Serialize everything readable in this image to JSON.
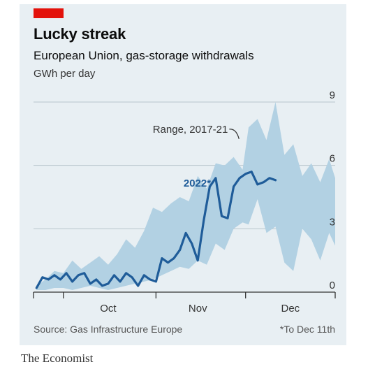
{
  "header": {
    "title": "Lucky streak",
    "subtitle": "European Union, gas-storage withdrawals",
    "unit": "GWh per day"
  },
  "footer": {
    "source": "Source: Gas Infrastructure Europe",
    "footnote": "*To Dec 11th",
    "brand": "The Economist"
  },
  "colors": {
    "accent_red": "#e3120b",
    "band": "#b2d1e3",
    "line": "#1f5c99",
    "card_bg": "#e8eff3"
  },
  "chart_data": {
    "type": "area",
    "title": "Lucky streak",
    "subtitle": "European Union, gas-storage withdrawals",
    "ylabel": "GWh per day",
    "ylim": [
      0,
      9
    ],
    "y_ticks": [
      0,
      3,
      6,
      9
    ],
    "y_tick_labels": [
      "0",
      "3",
      "6",
      "9"
    ],
    "x_axis": {
      "type": "date",
      "range": [
        "2000-09-21",
        "2000-12-31"
      ],
      "month_labels": [
        {
          "label": "Oct",
          "center": "2000-10-16"
        },
        {
          "label": "Nov",
          "center": "2000-11-15"
        },
        {
          "label": "Dec",
          "center": "2000-12-16"
        }
      ],
      "month_ticks": [
        "2000-10-01",
        "2000-11-01",
        "2000-12-01",
        "2000-12-31"
      ]
    },
    "grid": true,
    "legend": "none",
    "annotations": [
      {
        "text": "Range, 2017-21",
        "target": "range band"
      },
      {
        "text": "2022*",
        "target": "2022 line"
      }
    ],
    "series": [
      {
        "name": "Range, 2017-21",
        "kind": "band",
        "x": [
          "09-22",
          "09-25",
          "09-28",
          "10-01",
          "10-04",
          "10-07",
          "10-10",
          "10-13",
          "10-16",
          "10-19",
          "10-22",
          "10-25",
          "10-28",
          "10-31",
          "11-03",
          "11-06",
          "11-09",
          "11-12",
          "11-15",
          "11-18",
          "11-21",
          "11-24",
          "11-27",
          "11-30",
          "12-02",
          "12-05",
          "12-08",
          "12-11",
          "12-14",
          "12-17",
          "12-20",
          "12-23",
          "12-26",
          "12-29",
          "12-31"
        ],
        "high": [
          0.3,
          0.6,
          1.0,
          0.9,
          1.5,
          1.1,
          1.4,
          1.7,
          1.3,
          1.8,
          2.5,
          2.1,
          2.9,
          4.0,
          3.8,
          4.2,
          4.5,
          4.3,
          5.5,
          4.9,
          6.1,
          6.0,
          6.4,
          5.8,
          7.8,
          8.2,
          7.2,
          9.0,
          6.5,
          7.0,
          5.5,
          6.1,
          5.2,
          6.3,
          5.4
        ],
        "low": [
          0.1,
          0.1,
          0.2,
          0.2,
          0.1,
          0.2,
          0.3,
          0.2,
          0.1,
          0.2,
          0.3,
          0.4,
          0.5,
          0.6,
          0.8,
          1.0,
          1.2,
          1.1,
          1.5,
          1.3,
          2.3,
          2.0,
          3.0,
          3.3,
          3.2,
          4.4,
          2.8,
          3.1,
          1.4,
          1.0,
          3.0,
          2.5,
          1.5,
          2.8,
          2.2
        ]
      },
      {
        "name": "2022*",
        "kind": "line",
        "x": [
          "09-22",
          "09-24",
          "09-26",
          "09-28",
          "09-30",
          "10-02",
          "10-04",
          "10-06",
          "10-08",
          "10-10",
          "10-12",
          "10-14",
          "10-16",
          "10-18",
          "10-20",
          "10-22",
          "10-24",
          "10-26",
          "10-28",
          "10-30",
          "11-01",
          "11-03",
          "11-05",
          "11-07",
          "11-09",
          "11-11",
          "11-13",
          "11-15",
          "11-17",
          "11-19",
          "11-21",
          "11-23",
          "11-25",
          "11-27",
          "11-29",
          "12-01",
          "12-03",
          "12-05",
          "12-07",
          "12-09",
          "12-11"
        ],
        "values": [
          0.2,
          0.7,
          0.6,
          0.8,
          0.6,
          0.9,
          0.5,
          0.8,
          0.9,
          0.4,
          0.6,
          0.3,
          0.4,
          0.8,
          0.5,
          0.9,
          0.7,
          0.3,
          0.8,
          0.6,
          0.5,
          1.6,
          1.4,
          1.6,
          2.0,
          2.8,
          2.3,
          1.5,
          3.4,
          5.0,
          5.4,
          3.6,
          3.5,
          5.0,
          5.4,
          5.6,
          5.7,
          5.1,
          5.2,
          5.4,
          5.3
        ]
      }
    ]
  }
}
